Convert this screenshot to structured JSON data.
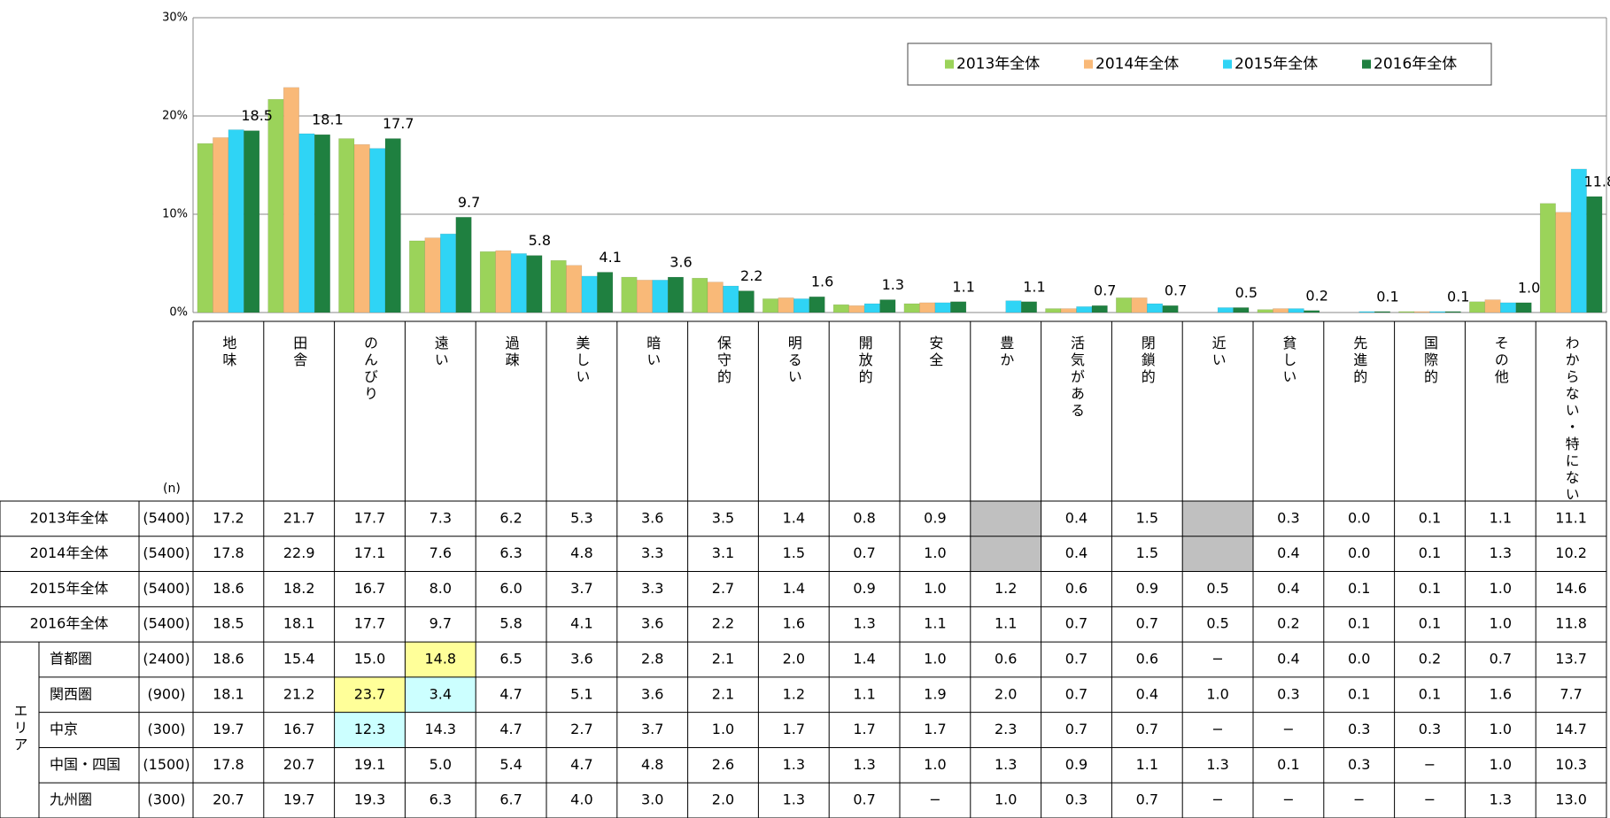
{
  "chart_data": {
    "type": "bar",
    "categories": [
      "地味",
      "田舎",
      "のんびり",
      "遠い",
      "過疎",
      "美しい",
      "暗い",
      "保守的",
      "明るい",
      "開放的",
      "安全",
      "豊か",
      "活気がある",
      "閉鎖的",
      "近い",
      "貧しい",
      "先進的",
      "国際的",
      "その他",
      "わからない・特にない"
    ],
    "ylim": [
      0,
      30
    ],
    "yticks": [
      {
        "value": 0,
        "label": "0%"
      },
      {
        "value": 10,
        "label": "10%"
      },
      {
        "value": 20,
        "label": "20%"
      },
      {
        "value": 30,
        "label": "30%"
      }
    ],
    "grid": true,
    "legend": "top-right",
    "n_header": "(n)",
    "series": [
      {
        "name": "2013年全体",
        "color": "#9bd35a",
        "n": "(5400)",
        "values": [
          17.2,
          21.7,
          17.7,
          7.3,
          6.2,
          5.3,
          3.6,
          3.5,
          1.4,
          0.8,
          0.9,
          null,
          0.4,
          1.5,
          null,
          0.3,
          0,
          0.1,
          1.1,
          11.1
        ],
        "value_labels": [
          "17.2",
          "21.7",
          "17.7",
          "7.3",
          "6.2",
          "5.3",
          "3.6",
          "3.5",
          "1.4",
          "0.8",
          "0.9",
          null,
          "0.4",
          "1.5",
          null,
          "0.3",
          "0.0",
          "0.1",
          "1.1",
          "11.1"
        ]
      },
      {
        "name": "2014年全体",
        "color": "#f9b978",
        "n": "(5400)",
        "values": [
          17.8,
          22.9,
          17.1,
          7.6,
          6.3,
          4.8,
          3.3,
          3.1,
          1.5,
          0.7,
          1.0,
          null,
          0.4,
          1.5,
          null,
          0.4,
          0,
          0.1,
          1.3,
          10.2
        ],
        "value_labels": [
          "17.8",
          "22.9",
          "17.1",
          "7.6",
          "6.3",
          "4.8",
          "3.3",
          "3.1",
          "1.5",
          "0.7",
          "1.0",
          null,
          "0.4",
          "1.5",
          null,
          "0.4",
          "0.0",
          "0.1",
          "1.3",
          "10.2"
        ]
      },
      {
        "name": "2015年全体",
        "color": "#2fd4f5",
        "n": "(5400)",
        "values": [
          18.6,
          18.2,
          16.7,
          8.0,
          6.0,
          3.7,
          3.3,
          2.7,
          1.4,
          0.9,
          1.0,
          1.2,
          0.6,
          0.9,
          0.5,
          0.4,
          0.1,
          0.1,
          1.0,
          14.6
        ],
        "value_labels": [
          "18.6",
          "18.2",
          "16.7",
          "8.0",
          "6.0",
          "3.7",
          "3.3",
          "2.7",
          "1.4",
          "0.9",
          "1.0",
          "1.2",
          "0.6",
          "0.9",
          "0.5",
          "0.4",
          "0.1",
          "0.1",
          "1.0",
          "14.6"
        ]
      },
      {
        "name": "2016年全体",
        "color": "#1f8040",
        "n": "(5400)",
        "show_labels": true,
        "values": [
          18.5,
          18.1,
          17.7,
          9.7,
          5.8,
          4.1,
          3.6,
          2.2,
          1.6,
          1.3,
          1.1,
          1.1,
          0.7,
          0.7,
          0.5,
          0.2,
          0.1,
          0.1,
          1.0,
          11.8
        ],
        "value_labels": [
          "18.5",
          "18.1",
          "17.7",
          "9.7",
          "5.8",
          "4.1",
          "3.6",
          "2.2",
          "1.6",
          "1.3",
          "1.1",
          "1.1",
          "0.7",
          "0.7",
          "0.5",
          "0.2",
          "0.1",
          "0.1",
          "1.0",
          "11.8"
        ]
      }
    ]
  },
  "table": {
    "group_label": "エリア",
    "rows": [
      {
        "name": "首都圏",
        "n": "(2400)",
        "values": [
          "18.6",
          "15.4",
          "15.0",
          "14.8",
          "6.5",
          "3.6",
          "2.8",
          "2.1",
          "2.0",
          "1.4",
          "1.0",
          "0.6",
          "0.7",
          "0.6",
          "−",
          "0.4",
          "0.0",
          "0.2",
          "0.7",
          "13.7"
        ]
      },
      {
        "name": "関西圏",
        "n": "(900)",
        "values": [
          "18.1",
          "21.2",
          "23.7",
          "3.4",
          "4.7",
          "5.1",
          "3.6",
          "2.1",
          "1.2",
          "1.1",
          "1.9",
          "2.0",
          "0.7",
          "0.4",
          "1.0",
          "0.3",
          "0.1",
          "0.1",
          "1.6",
          "7.7"
        ]
      },
      {
        "name": "中京",
        "n": "(300)",
        "values": [
          "19.7",
          "16.7",
          "12.3",
          "14.3",
          "4.7",
          "2.7",
          "3.7",
          "1.0",
          "1.7",
          "1.7",
          "1.7",
          "2.3",
          "0.7",
          "0.7",
          "−",
          "−",
          "0.3",
          "0.3",
          "1.0",
          "14.7"
        ]
      },
      {
        "name": "中国・四国",
        "n": "(1500)",
        "values": [
          "17.8",
          "20.7",
          "19.1",
          "5.0",
          "5.4",
          "4.7",
          "4.8",
          "2.6",
          "1.3",
          "1.3",
          "1.0",
          "1.3",
          "0.9",
          "1.1",
          "1.3",
          "0.1",
          "0.3",
          "−",
          "1.0",
          "10.3"
        ]
      },
      {
        "name": "九州圏",
        "n": "(300)",
        "values": [
          "20.7",
          "19.7",
          "19.3",
          "6.3",
          "6.7",
          "4.0",
          "3.0",
          "2.0",
          "1.3",
          "0.7",
          "−",
          "1.0",
          "0.3",
          "0.7",
          "−",
          "−",
          "−",
          "−",
          "1.3",
          "13.0"
        ]
      }
    ],
    "highlights": [
      {
        "row": 0,
        "col": 3,
        "color": "#ffff99"
      },
      {
        "row": 1,
        "col": 2,
        "color": "#ffff99"
      },
      {
        "row": 1,
        "col": 3,
        "color": "#ccffff"
      },
      {
        "row": 2,
        "col": 2,
        "color": "#ccffff"
      }
    ]
  }
}
